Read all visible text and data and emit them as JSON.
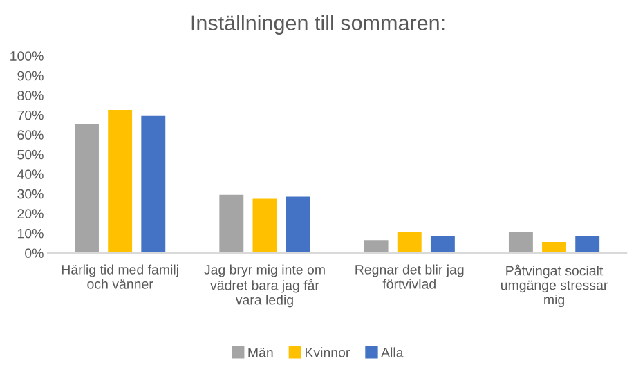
{
  "chart_data": {
    "type": "bar",
    "title": "Inställningen till sommaren:",
    "categories": [
      "Härlig tid med familj\noch vänner",
      "Jag bryr mig inte om\nvädret bara jag får\nvara ledig",
      "Regnar det blir jag\nförtvivlad",
      "Påtvingat socialt\numgänge stressar\nmig"
    ],
    "series": [
      {
        "name": "Män",
        "color": "#a5a5a5",
        "values": [
          66,
          30,
          7,
          11
        ]
      },
      {
        "name": "Kvinnor",
        "color": "#ffc000",
        "values": [
          73,
          28,
          11,
          6
        ]
      },
      {
        "name": "Alla",
        "color": "#4472c4",
        "values": [
          70,
          29,
          9,
          9
        ]
      }
    ],
    "ylim": [
      0,
      100
    ],
    "yticks": [
      {
        "value": 0,
        "label": "0%"
      },
      {
        "value": 10,
        "label": "10%"
      },
      {
        "value": 20,
        "label": "20%"
      },
      {
        "value": 30,
        "label": "30%"
      },
      {
        "value": 40,
        "label": "40%"
      },
      {
        "value": 50,
        "label": "50%"
      },
      {
        "value": 60,
        "label": "60%"
      },
      {
        "value": 70,
        "label": "70%"
      },
      {
        "value": 80,
        "label": "80%"
      },
      {
        "value": 90,
        "label": "90%"
      },
      {
        "value": 100,
        "label": "100%"
      }
    ],
    "grid": false,
    "legend": "bottom"
  }
}
